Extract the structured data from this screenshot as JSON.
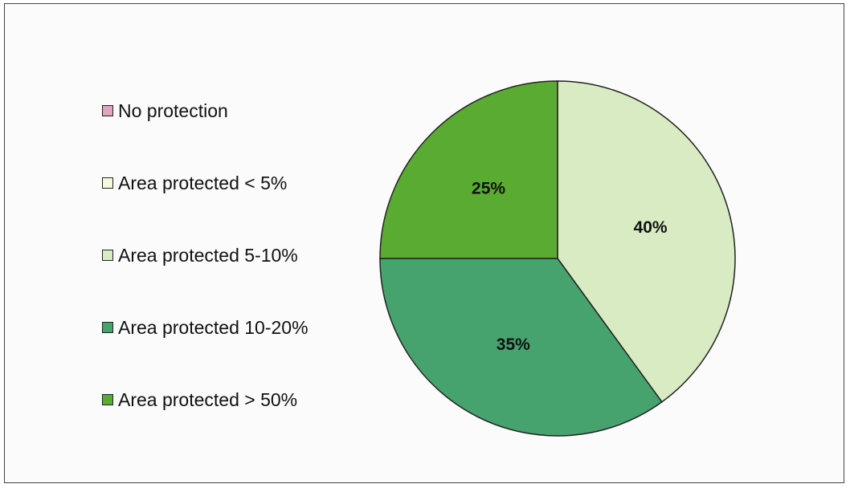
{
  "chart_data": {
    "type": "pie",
    "title": "",
    "categories": [
      "No protection",
      "Area protected < 5%",
      "Area protected 5-10%",
      "Area protected 10-20%",
      "Area protected > 50%"
    ],
    "values": [
      0,
      0,
      40,
      35,
      25
    ],
    "data_labels": [
      "",
      "",
      "40%",
      "35%",
      "25%"
    ],
    "colors": [
      "#e4a3bf",
      "#f4f9dc",
      "#d8ebc3",
      "#46a36e",
      "#5aab31"
    ],
    "legend_placement": "left",
    "grid": false
  }
}
